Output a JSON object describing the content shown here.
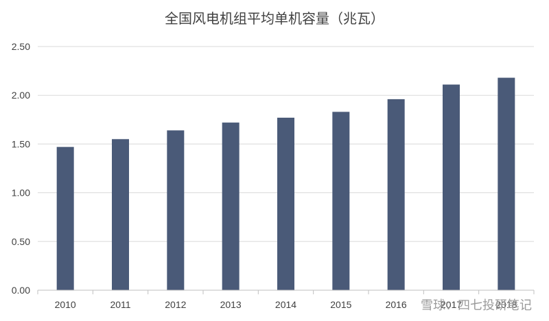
{
  "chart_data": {
    "type": "bar",
    "title": "全国风电机组平均单机容量（兆瓦）",
    "categories": [
      "2010",
      "2011",
      "2012",
      "2013",
      "2014",
      "2015",
      "2016",
      "2017",
      "2018"
    ],
    "values": [
      1.47,
      1.55,
      1.64,
      1.72,
      1.77,
      1.83,
      1.96,
      2.11,
      2.18
    ],
    "ylim": [
      0,
      2.5
    ],
    "yticks": [
      "0.00",
      "0.50",
      "1.00",
      "1.50",
      "2.00",
      "2.50"
    ],
    "xlabel": "",
    "ylabel": "",
    "grid": true,
    "bar_color": "#4a5a78"
  },
  "watermark": "雪球：四七投研笔记"
}
